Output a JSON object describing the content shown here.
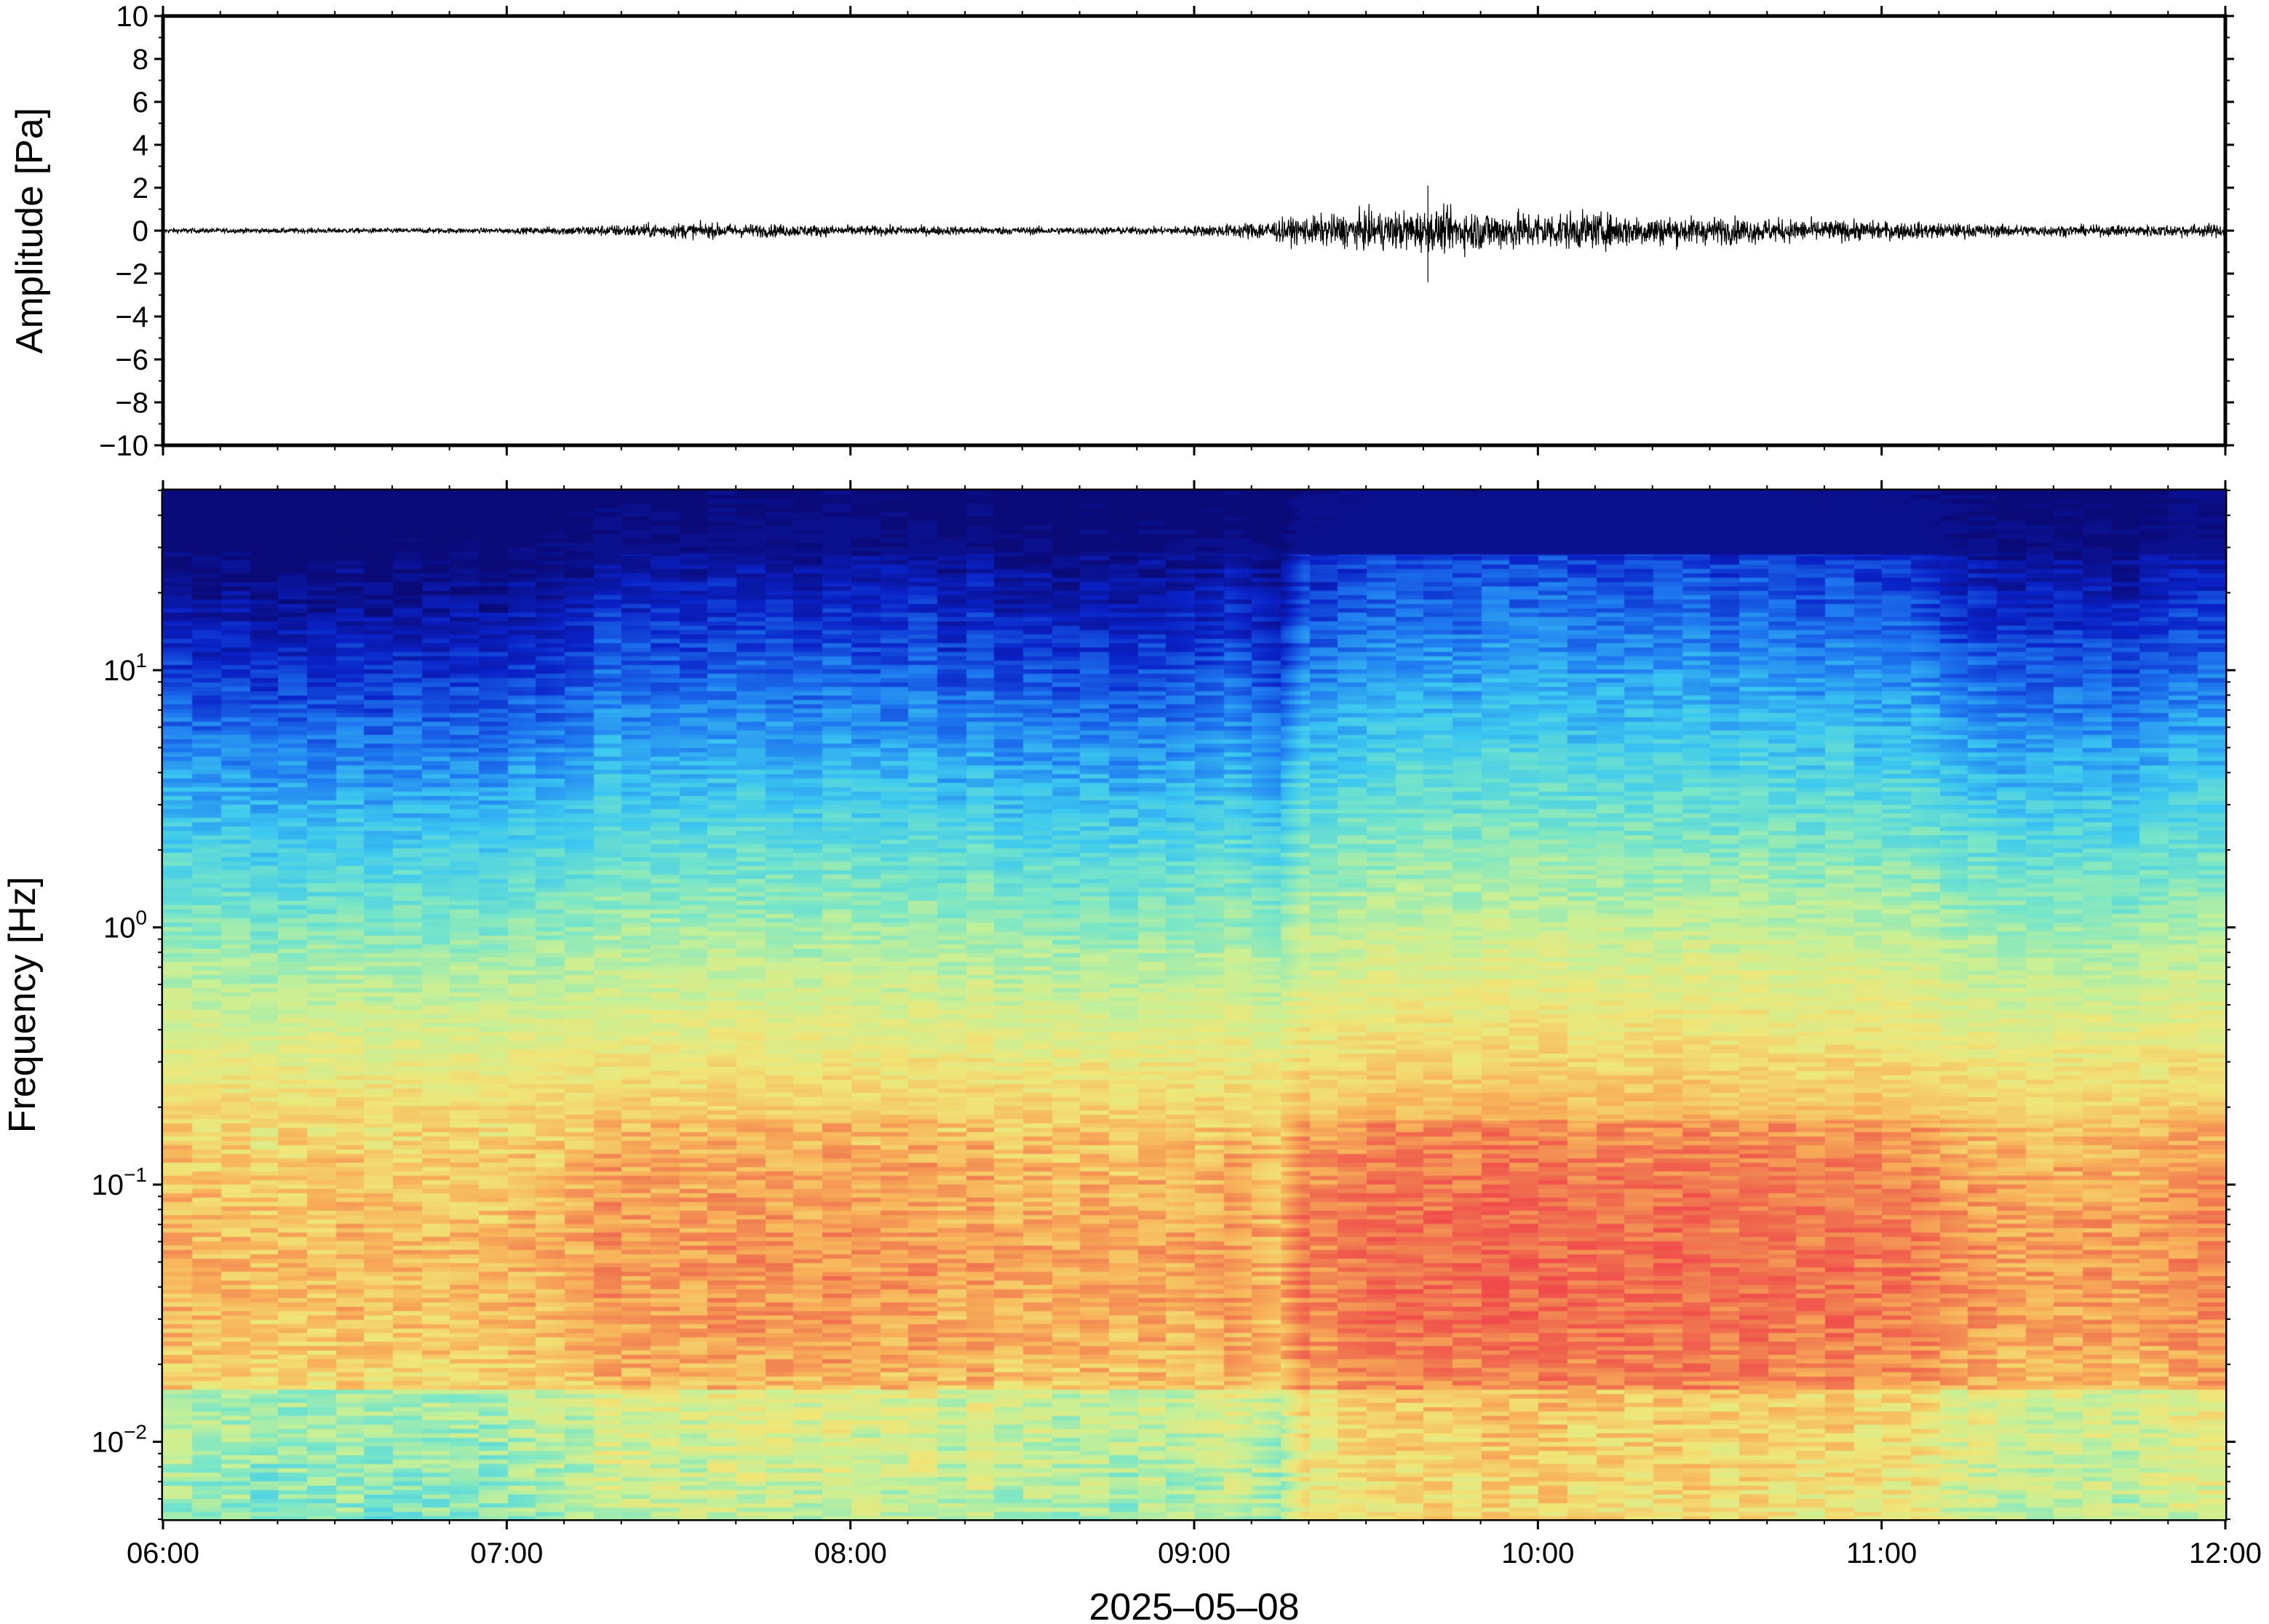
{
  "chart_data": [
    {
      "type": "line",
      "panel": "waveform",
      "ylabel": "Amplitude [Pa]",
      "ylim": [
        -10,
        10
      ],
      "yticks": [
        10,
        8,
        6,
        4,
        2,
        0,
        -2,
        -4,
        -6,
        -8,
        -10
      ],
      "ytick_labels": [
        "10",
        "8",
        "6",
        "4",
        "2",
        "0",
        "−2",
        "−4",
        "−6",
        "−8",
        "−10"
      ],
      "xlim": [
        "06:00",
        "12:00"
      ],
      "line_color": "#000000",
      "envelope": {
        "hours": [
          6.0,
          6.5,
          7.0,
          7.25,
          7.5,
          7.75,
          8.0,
          8.5,
          8.9,
          9.1,
          9.3,
          9.5,
          9.7,
          9.9,
          10.1,
          10.4,
          10.7,
          11.0,
          11.3,
          11.6,
          11.9,
          12.0
        ],
        "amplitude": [
          0.2,
          0.2,
          0.2,
          0.4,
          0.6,
          0.5,
          0.4,
          0.3,
          0.3,
          0.5,
          1.0,
          1.4,
          1.6,
          1.5,
          1.4,
          1.1,
          0.9,
          0.7,
          0.5,
          0.4,
          0.5,
          0.5
        ]
      },
      "peak_max": {
        "hour": 9.68,
        "value": 2.1
      },
      "peak_min": {
        "hour": 9.68,
        "value": -2.4
      }
    },
    {
      "type": "heatmap",
      "panel": "spectrogram",
      "ylabel": "Frequency [Hz]",
      "xlabel": "2025–05–08",
      "yscale": "log",
      "ylim": [
        0.005,
        50
      ],
      "ytick_labels": [
        {
          "base": "10",
          "exp": "1",
          "value": 10
        },
        {
          "base": "10",
          "exp": "0",
          "value": 1
        },
        {
          "base": "10",
          "exp": "−1",
          "value": 0.1
        },
        {
          "base": "10",
          "exp": "−2",
          "value": 0.01
        }
      ],
      "xtick_labels": [
        "06:00",
        "07:00",
        "08:00",
        "09:00",
        "10:00",
        "11:00",
        "12:00"
      ],
      "xlim": [
        "06:00",
        "12:00"
      ],
      "colormap": "rainbow (low: dark blue, high: red)",
      "colormap_stops": [
        "#0a0a78",
        "#0a22c8",
        "#1e78f0",
        "#3cc8f0",
        "#78e6c8",
        "#c8f096",
        "#f0e678",
        "#f8b45a",
        "#f07850",
        "#f04a4a"
      ],
      "intensity_profile": {
        "hours": [
          6.0,
          6.5,
          6.8,
          7.0,
          7.2,
          7.5,
          8.0,
          8.5,
          8.9,
          9.1,
          9.25,
          9.32,
          9.6,
          10.0,
          10.4,
          10.8,
          11.1,
          11.3,
          11.6,
          11.9,
          12.0
        ],
        "level": [
          0.1,
          0.06,
          0.02,
          0.1,
          0.28,
          0.38,
          0.34,
          0.24,
          0.16,
          0.36,
          0.1,
          0.55,
          0.66,
          0.72,
          0.7,
          0.62,
          0.56,
          0.3,
          0.22,
          0.36,
          0.36
        ]
      }
    }
  ]
}
